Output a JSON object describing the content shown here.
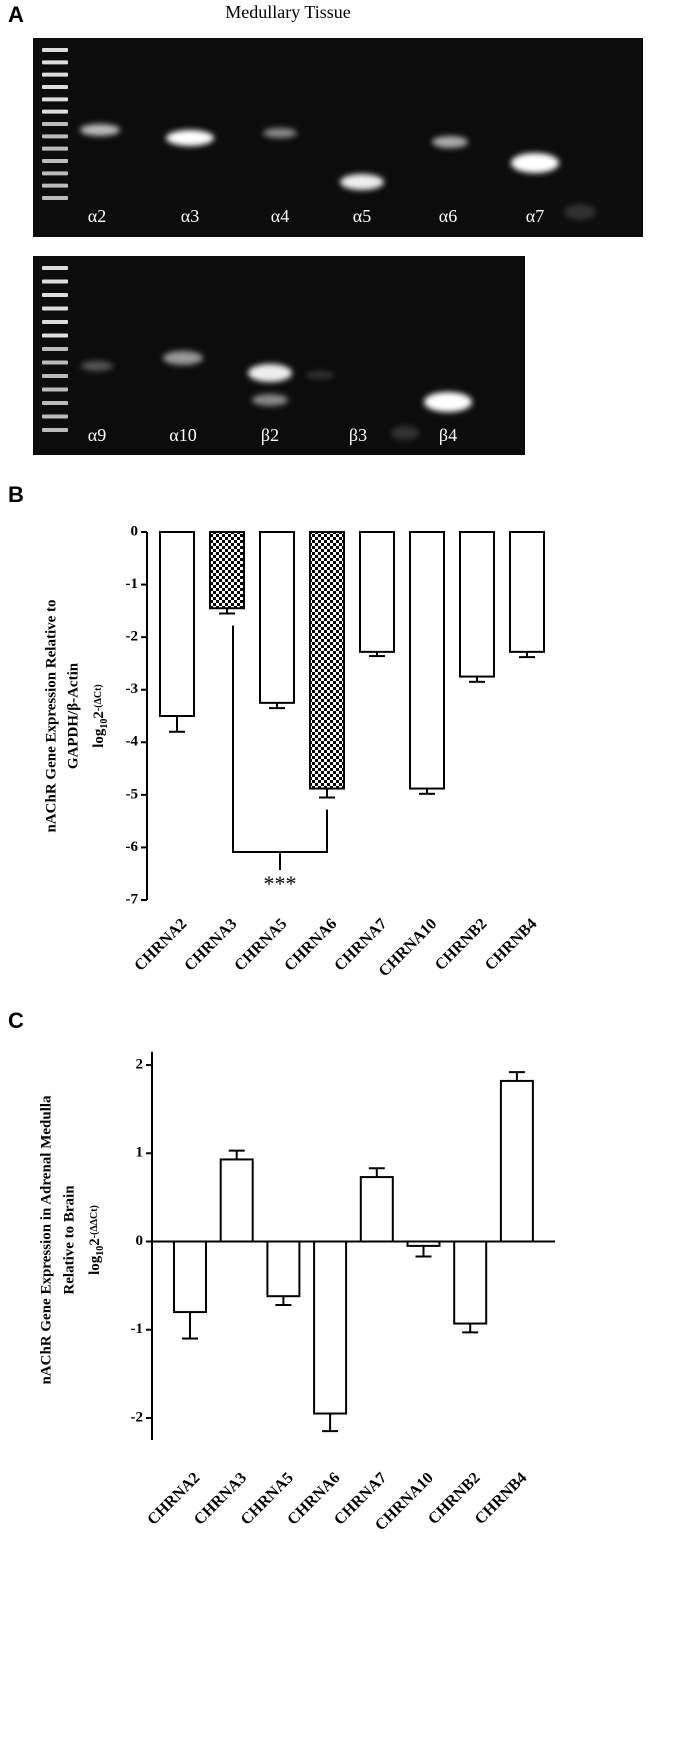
{
  "panels": [
    "A",
    "B",
    "C"
  ],
  "gel": {
    "title": "Medullary Tissue",
    "lanes_top": [
      "α2",
      "α3",
      "α4",
      "α5",
      "α6",
      "α7"
    ],
    "lanes_bottom": [
      "α9",
      "α10",
      "β2",
      "β3",
      "β4"
    ]
  },
  "chart_data": [
    {
      "type": "bar",
      "ylabel_lines": [
        "nAChR Gene Expression Relative to",
        "GAPDH/β-Actin"
      ],
      "ylabel_units": {
        "base": "log",
        "sub": "10",
        "num": "2",
        "sup": "-(ΔCt)"
      },
      "categories": [
        "CHRNA2",
        "CHRNA3",
        "CHRNA5",
        "CHRNA6",
        "CHRNA7",
        "CHRNA10",
        "CHRNB2",
        "CHRNB4"
      ],
      "values": [
        -3.5,
        -1.45,
        -3.25,
        -4.88,
        -2.28,
        -4.88,
        -2.75,
        -2.28
      ],
      "errors": [
        0.3,
        0.1,
        0.1,
        0.17,
        0.08,
        0.1,
        0.1,
        0.1
      ],
      "bar_fill": [
        "white",
        "checker",
        "white",
        "checker",
        "white",
        "white",
        "white",
        "white"
      ],
      "significance_label": "***",
      "ylim": [
        -7,
        0
      ],
      "yticks": [
        0,
        -1,
        -2,
        -3,
        -4,
        -5,
        -6,
        -7
      ],
      "zero_line": false
    },
    {
      "type": "bar",
      "ylabel_lines": [
        "nAChR Gene Expression in Adrenal Medulla",
        "Relative to Brain"
      ],
      "ylabel_units": {
        "base": "log",
        "sub": "10",
        "num": "2",
        "sup": "-(ΔΔCt)"
      },
      "categories": [
        "CHRNA2",
        "CHRNA3",
        "CHRNA5",
        "CHRNA6",
        "CHRNA7",
        "CHRNA10",
        "CHRNB2",
        "CHRNB4"
      ],
      "values": [
        -0.8,
        0.93,
        -0.62,
        -1.95,
        0.73,
        -0.05,
        -0.93,
        1.82
      ],
      "errors": [
        0.3,
        0.1,
        0.1,
        0.2,
        0.1,
        0.12,
        0.1,
        0.1
      ],
      "bar_fill": [
        "white",
        "white",
        "white",
        "white",
        "white",
        "white",
        "white",
        "white"
      ],
      "ylim": [
        -2.25,
        2.15
      ],
      "yticks": [
        2,
        1,
        0,
        -1,
        -2
      ],
      "zero_line": true
    }
  ]
}
